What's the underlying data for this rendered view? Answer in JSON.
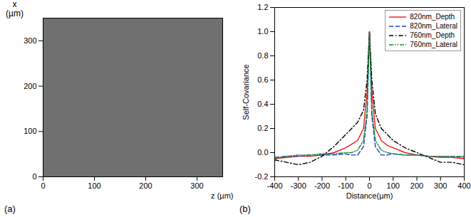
{
  "chart_data": [
    {
      "type": "image",
      "caption": "(a)",
      "xlabel": "z (µm)",
      "ylabel": "x (µm)",
      "xlim": [
        0,
        350
      ],
      "ylim": [
        0,
        350
      ],
      "xticks": [
        0,
        100,
        200,
        300
      ],
      "yticks": [
        0,
        100,
        200,
        300
      ],
      "color": "#707070"
    },
    {
      "type": "line",
      "caption": "(b)",
      "xlabel": "Distance(µm)",
      "ylabel": "Self-Covariance",
      "xlim": [
        -400,
        400
      ],
      "ylim": [
        -0.2,
        1.2
      ],
      "xticks": [
        -400,
        -300,
        -200,
        -100,
        0,
        100,
        200,
        300,
        400
      ],
      "yticks": [
        -0.2,
        {
          "value": 0,
          "label": "0.0"
        },
        0.2,
        0.4,
        0.6,
        0.8,
        {
          "value": 1,
          "label": "1.0"
        },
        1.2
      ],
      "legend": "top-right",
      "x": [
        -400,
        -350,
        -300,
        -250,
        -200,
        -150,
        -100,
        -75,
        -50,
        -25,
        -10,
        0,
        10,
        25,
        50,
        75,
        100,
        150,
        200,
        250,
        300,
        350,
        400
      ],
      "series": [
        {
          "name": "820nm_Depth",
          "color": "#e41a1c",
          "line_style": "solid",
          "values": [
            -0.05,
            -0.04,
            -0.03,
            -0.03,
            -0.02,
            0.0,
            0.04,
            0.07,
            0.1,
            0.2,
            0.5,
            1.0,
            0.5,
            0.2,
            0.1,
            0.06,
            0.04,
            0.0,
            -0.02,
            -0.03,
            -0.04,
            -0.04,
            -0.05
          ]
        },
        {
          "name": "820nm_Lateral",
          "color": "#1f3fd6",
          "line_style": "dashed",
          "values": [
            -0.04,
            -0.03,
            -0.03,
            -0.02,
            -0.02,
            -0.02,
            -0.01,
            -0.02,
            -0.02,
            0.05,
            0.3,
            1.0,
            0.3,
            0.05,
            -0.02,
            -0.02,
            -0.01,
            -0.02,
            -0.02,
            -0.03,
            -0.03,
            -0.03,
            -0.04
          ]
        },
        {
          "name": "760nm_Depth",
          "color": "#000000",
          "line_style": "dashdot",
          "values": [
            -0.06,
            -0.08,
            -0.1,
            -0.08,
            -0.03,
            0.05,
            0.15,
            0.2,
            0.25,
            0.35,
            0.6,
            1.0,
            0.6,
            0.32,
            0.2,
            0.15,
            0.1,
            0.04,
            0.0,
            -0.04,
            -0.08,
            -0.08,
            -0.1
          ]
        },
        {
          "name": "760nm_Lateral",
          "color": "#1a8a2a",
          "line_style": "dashdotdot",
          "values": [
            -0.05,
            -0.03,
            -0.02,
            -0.02,
            -0.01,
            -0.01,
            0.0,
            0.0,
            0.02,
            0.1,
            0.35,
            1.0,
            0.35,
            0.1,
            0.02,
            0.0,
            -0.01,
            -0.02,
            -0.02,
            -0.03,
            -0.03,
            -0.03,
            -0.03
          ]
        }
      ]
    }
  ]
}
